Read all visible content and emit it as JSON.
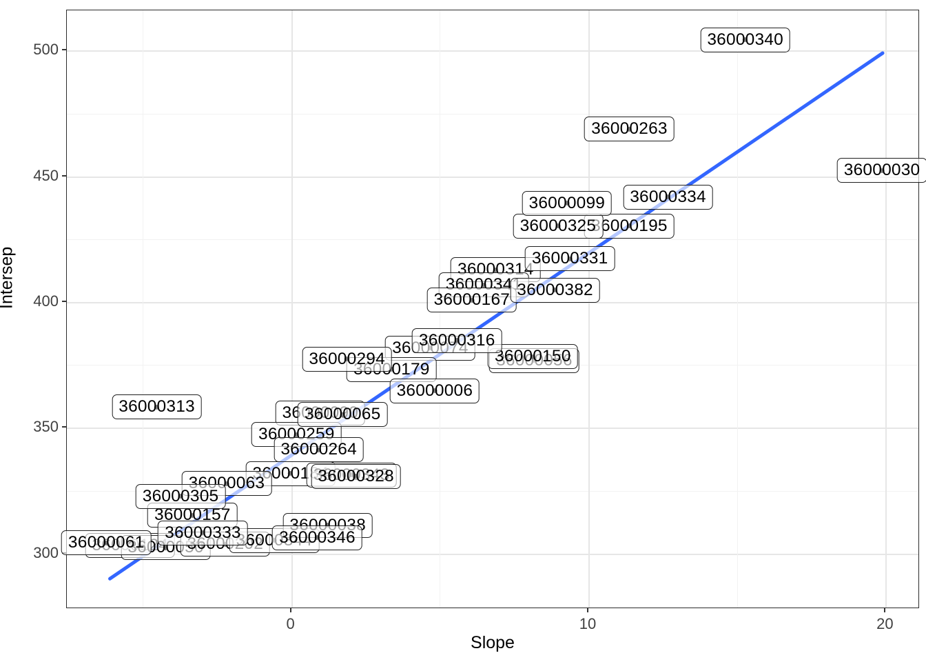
{
  "chart_data": {
    "type": "scatter",
    "title": "",
    "xlabel": "Slope",
    "ylabel": "Intersep",
    "x_major_ticks": [
      0,
      10,
      20
    ],
    "y_major_ticks": [
      300,
      350,
      400,
      450,
      500
    ],
    "xlim": [
      -7.55,
      21.15
    ],
    "ylim": [
      278,
      516
    ],
    "grid": "major and minor gridlines on white panel, thin black panel border",
    "legend_position": "none",
    "trend_line": {
      "x": [
        -6.1,
        19.9
      ],
      "y": [
        290,
        499
      ],
      "color": "#3366FF",
      "width": 5
    },
    "label_style": {
      "border": "#1f1f1f",
      "fill": "rgba(255,255,255,0.63)",
      "point_color": "#6e6e6e"
    },
    "points": [
      {
        "label": "36000195",
        "slope": 11.4,
        "intercept": 430
      },
      {
        "label": "36000314",
        "slope": 6.9,
        "intercept": 412.5
      },
      {
        "label": "36000341",
        "slope": 6.5,
        "intercept": 406.5
      },
      {
        "label": "36000167",
        "slope": 6.1,
        "intercept": 400.5
      },
      {
        "label": "36000074",
        "slope": 4.7,
        "intercept": 381.5
      },
      {
        "label": "36000056",
        "slope": 8.2,
        "intercept": 376.5
      },
      {
        "label": "36000179",
        "slope": 3.4,
        "intercept": 373
      },
      {
        "label": "36000090",
        "slope": 1.0,
        "intercept": 355.5
      },
      {
        "label": "36000184",
        "slope": 0.0,
        "intercept": 331.5
      },
      {
        "label": "36000343",
        "slope": 2.05,
        "intercept": 331
      },
      {
        "label": "36000063",
        "slope": -2.15,
        "intercept": 327.5
      },
      {
        "label": "36000124",
        "slope": -5.4,
        "intercept": 303
      },
      {
        "label": "36000050",
        "slope": -4.2,
        "intercept": 302
      },
      {
        "label": "36000061",
        "slope": -6.2,
        "intercept": 304
      },
      {
        "label": "36000202",
        "slope": -2.2,
        "intercept": 303.5
      },
      {
        "label": "36000344",
        "slope": -0.55,
        "intercept": 305
      },
      {
        "label": "36000157",
        "slope": -3.3,
        "intercept": 315
      },
      {
        "label": "36000333",
        "slope": -2.95,
        "intercept": 308
      },
      {
        "label": "36000038",
        "slope": 1.25,
        "intercept": 311
      },
      {
        "label": "36000346",
        "slope": 0.9,
        "intercept": 306
      },
      {
        "label": "36000305",
        "slope": -3.7,
        "intercept": 322.5
      },
      {
        "label": "36000259",
        "slope": 0.2,
        "intercept": 347
      },
      {
        "label": "36000264",
        "slope": 0.95,
        "intercept": 341
      },
      {
        "label": "36000328",
        "slope": 2.2,
        "intercept": 330.5
      },
      {
        "label": "36000065",
        "slope": 1.75,
        "intercept": 355
      },
      {
        "label": "36000294",
        "slope": 1.9,
        "intercept": 377
      },
      {
        "label": "36000150",
        "slope": 8.15,
        "intercept": 378
      },
      {
        "label": "36000316",
        "slope": 5.6,
        "intercept": 384.5
      },
      {
        "label": "36000006",
        "slope": 4.85,
        "intercept": 364.5
      },
      {
        "label": "36000382",
        "slope": 8.9,
        "intercept": 404.5
      },
      {
        "label": "36000331",
        "slope": 9.4,
        "intercept": 417
      },
      {
        "label": "36000325",
        "slope": 9.0,
        "intercept": 430
      },
      {
        "label": "36000099",
        "slope": 9.3,
        "intercept": 439
      },
      {
        "label": "36000334",
        "slope": 12.7,
        "intercept": 441.5
      },
      {
        "label": "36000313",
        "slope": -4.5,
        "intercept": 358
      },
      {
        "label": "36000263",
        "slope": 11.4,
        "intercept": 468.5
      },
      {
        "label": "36000340",
        "slope": 15.3,
        "intercept": 504
      },
      {
        "label": "36000030",
        "slope": 19.9,
        "intercept": 452
      }
    ]
  },
  "colors": {
    "trend": "#3366FF",
    "grid_major": "#e6e6e6",
    "grid_minor": "#f2f2f2",
    "panel_border": "#2b2b2b",
    "tick_text": "#404040",
    "axis_title": "#000000"
  }
}
